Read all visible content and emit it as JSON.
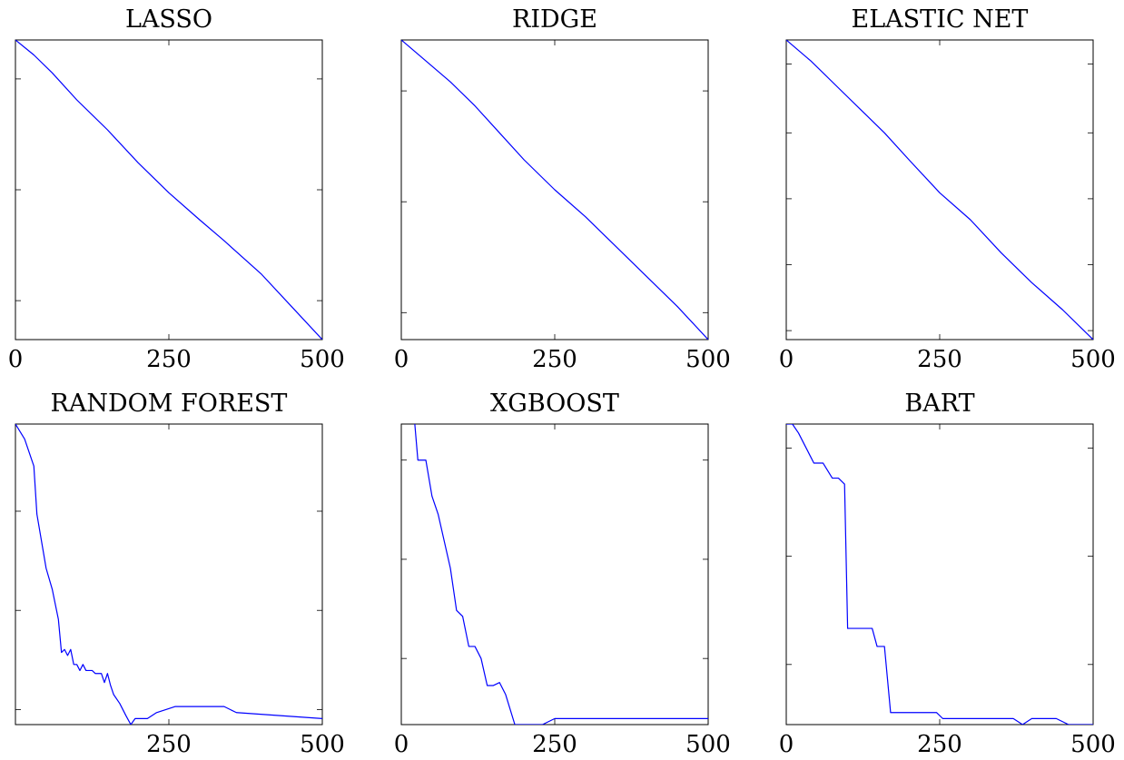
{
  "colors": {
    "series": "#0000ff",
    "axis": "#000000"
  },
  "chart_data": [
    {
      "type": "line",
      "title": "LASSO",
      "xlim": [
        0,
        500
      ],
      "ylim": [
        0,
        1
      ],
      "xticks": [
        "0",
        "250",
        "500"
      ],
      "yticks": [
        0.13,
        0.5,
        0.87
      ],
      "series": [
        {
          "x": [
            0,
            30,
            60,
            100,
            150,
            200,
            250,
            300,
            340,
            400,
            450,
            500
          ],
          "y": [
            1.0,
            0.95,
            0.89,
            0.8,
            0.7,
            0.59,
            0.49,
            0.4,
            0.33,
            0.22,
            0.11,
            0.0
          ]
        }
      ]
    },
    {
      "type": "line",
      "title": "RIDGE",
      "xlim": [
        0,
        500
      ],
      "ylim": [
        0,
        1
      ],
      "xticks": [
        "0",
        "250",
        "500"
      ],
      "yticks": [
        0.09,
        0.46,
        0.83
      ],
      "series": [
        {
          "x": [
            0,
            40,
            80,
            120,
            160,
            200,
            250,
            300,
            340,
            400,
            450,
            500
          ],
          "y": [
            1.0,
            0.93,
            0.86,
            0.78,
            0.69,
            0.6,
            0.5,
            0.41,
            0.33,
            0.21,
            0.11,
            0.0
          ]
        }
      ]
    },
    {
      "type": "line",
      "title": "ELASTIC NET",
      "xlim": [
        0,
        500
      ],
      "ylim": [
        0,
        1
      ],
      "xticks": [
        "0",
        "250",
        "500"
      ],
      "yticks": [
        0.03,
        0.25,
        0.47,
        0.69,
        0.92
      ],
      "series": [
        {
          "x": [
            0,
            40,
            80,
            120,
            160,
            200,
            250,
            300,
            350,
            400,
            450,
            500
          ],
          "y": [
            1.0,
            0.93,
            0.85,
            0.77,
            0.69,
            0.6,
            0.49,
            0.4,
            0.29,
            0.19,
            0.1,
            0.0
          ]
        }
      ]
    },
    {
      "type": "line",
      "title": "RANDOM FOREST",
      "xlim": [
        0,
        500
      ],
      "ylim": [
        0,
        1
      ],
      "xticks": [
        "250",
        "500"
      ],
      "yticks": [
        0.05,
        0.38,
        0.71
      ],
      "series": [
        {
          "x": [
            0,
            15,
            30,
            35,
            45,
            50,
            60,
            65,
            70,
            75,
            80,
            85,
            90,
            95,
            100,
            105,
            110,
            115,
            120,
            125,
            130,
            140,
            145,
            150,
            155,
            160,
            170,
            180,
            188,
            195,
            215,
            230,
            260,
            340,
            360,
            500
          ],
          "y": [
            1.0,
            0.95,
            0.86,
            0.7,
            0.58,
            0.52,
            0.45,
            0.4,
            0.35,
            0.24,
            0.25,
            0.23,
            0.25,
            0.2,
            0.2,
            0.18,
            0.2,
            0.18,
            0.18,
            0.18,
            0.17,
            0.17,
            0.14,
            0.17,
            0.13,
            0.1,
            0.07,
            0.03,
            0.0,
            0.02,
            0.02,
            0.04,
            0.06,
            0.06,
            0.04,
            0.02
          ]
        }
      ]
    },
    {
      "type": "line",
      "title": "XGBOOST",
      "xlim": [
        0,
        500
      ],
      "ylim": [
        0,
        1
      ],
      "xticks": [
        "0",
        "250",
        "500"
      ],
      "yticks": [
        0.22,
        0.55,
        0.88
      ],
      "series": [
        {
          "x": [
            0,
            22,
            27,
            40,
            50,
            60,
            80,
            90,
            100,
            110,
            120,
            130,
            140,
            150,
            160,
            170,
            185,
            230,
            250,
            300,
            500
          ],
          "y": [
            1.19,
            1.0,
            0.88,
            0.88,
            0.76,
            0.7,
            0.52,
            0.38,
            0.36,
            0.26,
            0.26,
            0.22,
            0.13,
            0.13,
            0.14,
            0.1,
            0.0,
            0.0,
            0.02,
            0.02,
            0.02
          ]
        }
      ]
    },
    {
      "type": "line",
      "title": "BART",
      "xlim": [
        0,
        500
      ],
      "ylim": [
        0,
        1
      ],
      "xticks": [
        "0",
        "250",
        "500"
      ],
      "yticks": [
        0.2,
        0.56,
        0.92
      ],
      "series": [
        {
          "x": [
            0,
            10,
            20,
            30,
            45,
            60,
            75,
            85,
            95,
            100,
            140,
            148,
            160,
            170,
            245,
            255,
            370,
            385,
            400,
            440,
            460,
            500
          ],
          "y": [
            1.0,
            1.0,
            0.97,
            0.93,
            0.87,
            0.87,
            0.82,
            0.82,
            0.8,
            0.32,
            0.32,
            0.26,
            0.26,
            0.04,
            0.04,
            0.02,
            0.02,
            0.0,
            0.02,
            0.02,
            0.0,
            0.0
          ]
        }
      ]
    }
  ]
}
